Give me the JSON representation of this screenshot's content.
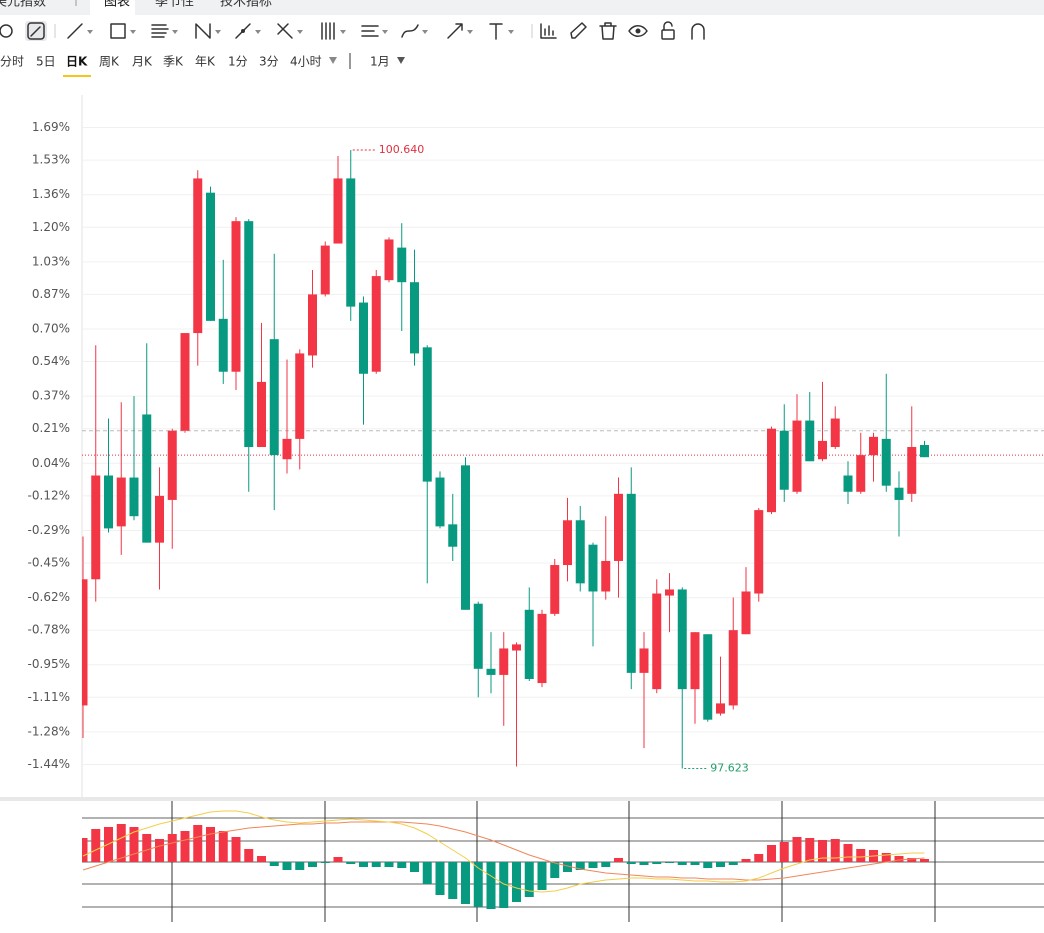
{
  "tabs": {
    "items": [
      "美元指数",
      "图表",
      "季节性",
      "技术指标"
    ],
    "active": 1
  },
  "periods": {
    "items": [
      "分时",
      "5日",
      "日K",
      "周K",
      "月K",
      "季K",
      "年K",
      "1分",
      "3分",
      "4小时"
    ],
    "active": 2,
    "more": "1月"
  },
  "chart_data": {
    "type": "candlestick",
    "up_color": "#f23645",
    "down_color": "#089981",
    "ylim": [
      -1.6,
      1.85
    ],
    "yticks": [
      {
        "value": 1.69,
        "label": "1.69%"
      },
      {
        "value": 1.53,
        "label": "1.53%"
      },
      {
        "value": 1.36,
        "label": "1.36%"
      },
      {
        "value": 1.2,
        "label": "1.20%"
      },
      {
        "value": 1.03,
        "label": "1.03%"
      },
      {
        "value": 0.87,
        "label": "0.87%"
      },
      {
        "value": 0.7,
        "label": "0.70%"
      },
      {
        "value": 0.54,
        "label": "0.54%"
      },
      {
        "value": 0.37,
        "label": "0.37%"
      },
      {
        "value": 0.21,
        "label": "0.21%"
      },
      {
        "value": 0.04,
        "label": "0.04%"
      },
      {
        "value": -0.12,
        "label": "-0.12%"
      },
      {
        "value": -0.29,
        "label": "-0.29%"
      },
      {
        "value": -0.45,
        "label": "-0.45%"
      },
      {
        "value": -0.62,
        "label": "-0.62%"
      },
      {
        "value": -0.78,
        "label": "-0.78%"
      },
      {
        "value": -0.95,
        "label": "-0.95%"
      },
      {
        "value": -1.11,
        "label": "-1.11%"
      },
      {
        "value": -1.28,
        "label": "-1.28%"
      },
      {
        "value": -1.44,
        "label": "-1.44%"
      }
    ],
    "grid": true,
    "max_label": "100.640",
    "min_label": "97.623",
    "price_lines": [
      {
        "value": 0.2,
        "color": "#bbbbbb",
        "dash": "4 3"
      },
      {
        "value": 0.08,
        "color": "#e0303f",
        "dash": "1 2"
      }
    ],
    "ohlc": [
      [
        -1.15,
        -0.32,
        -1.31,
        -0.53
      ],
      [
        -0.53,
        0.62,
        -0.64,
        -0.02
      ],
      [
        -0.02,
        0.26,
        -0.3,
        -0.28
      ],
      [
        -0.27,
        0.34,
        -0.41,
        -0.03
      ],
      [
        -0.03,
        0.37,
        -0.24,
        -0.22
      ],
      [
        0.28,
        0.63,
        -0.35,
        -0.35
      ],
      [
        -0.35,
        0.02,
        -0.58,
        -0.12
      ],
      [
        -0.14,
        0.21,
        -0.38,
        0.2
      ],
      [
        0.2,
        0.68,
        0.19,
        0.68
      ],
      [
        0.68,
        1.48,
        0.52,
        1.44
      ],
      [
        1.37,
        1.4,
        0.74,
        0.74
      ],
      [
        0.75,
        1.04,
        0.43,
        0.49
      ],
      [
        0.49,
        1.25,
        0.4,
        1.23
      ],
      [
        1.23,
        1.24,
        -0.1,
        0.12
      ],
      [
        0.12,
        0.73,
        0.12,
        0.44
      ],
      [
        0.65,
        1.07,
        -0.19,
        0.08
      ],
      [
        0.06,
        0.55,
        -0.01,
        0.16
      ],
      [
        0.16,
        0.6,
        0.01,
        0.58
      ],
      [
        0.57,
        0.99,
        0.51,
        0.87
      ],
      [
        0.87,
        1.13,
        0.86,
        1.11
      ],
      [
        1.12,
        1.55,
        1.12,
        1.44
      ],
      [
        1.44,
        1.58,
        0.74,
        0.81
      ],
      [
        0.83,
        0.86,
        0.23,
        0.48
      ],
      [
        0.49,
        0.99,
        0.48,
        0.96
      ],
      [
        0.94,
        1.15,
        0.93,
        1.14
      ],
      [
        1.1,
        1.22,
        0.69,
        0.93
      ],
      [
        0.93,
        1.09,
        0.52,
        0.58
      ],
      [
        0.61,
        0.62,
        -0.55,
        -0.05
      ],
      [
        -0.03,
        0.0,
        -0.28,
        -0.27
      ],
      [
        -0.26,
        -0.11,
        -0.44,
        -0.37
      ],
      [
        0.03,
        0.07,
        -0.68,
        -0.68
      ],
      [
        -0.65,
        -0.64,
        -1.11,
        -0.97
      ],
      [
        -0.97,
        -0.79,
        -1.09,
        -1.0
      ],
      [
        -1.0,
        -0.79,
        -1.25,
        -0.87
      ],
      [
        -0.88,
        -0.84,
        -1.45,
        -0.85
      ],
      [
        -0.68,
        -0.57,
        -1.03,
        -1.02
      ],
      [
        -1.04,
        -0.68,
        -1.06,
        -0.7
      ],
      [
        -0.7,
        -0.43,
        -0.71,
        -0.46
      ],
      [
        -0.46,
        -0.13,
        -0.54,
        -0.24
      ],
      [
        -0.24,
        -0.17,
        -0.59,
        -0.55
      ],
      [
        -0.36,
        -0.35,
        -0.86,
        -0.59
      ],
      [
        -0.59,
        -0.22,
        -0.63,
        -0.44
      ],
      [
        -0.44,
        -0.03,
        -0.62,
        -0.11
      ],
      [
        -0.11,
        0.02,
        -1.07,
        -0.99
      ],
      [
        -0.99,
        -0.79,
        -1.36,
        -0.87
      ],
      [
        -1.07,
        -0.53,
        -1.09,
        -0.6
      ],
      [
        -0.61,
        -0.5,
        -0.79,
        -0.58
      ],
      [
        -0.58,
        -0.57,
        -1.46,
        -1.07
      ],
      [
        -1.07,
        -0.79,
        -1.24,
        -0.79
      ],
      [
        -0.8,
        -0.8,
        -1.23,
        -1.22
      ],
      [
        -1.19,
        -0.91,
        -1.2,
        -1.14
      ],
      [
        -1.15,
        -0.62,
        -1.17,
        -0.78
      ],
      [
        -0.8,
        -0.47,
        -0.8,
        -0.59
      ],
      [
        -0.6,
        -0.18,
        -0.64,
        -0.19
      ],
      [
        -0.2,
        0.22,
        -0.21,
        0.21
      ],
      [
        0.2,
        0.33,
        -0.15,
        -0.09
      ],
      [
        -0.1,
        0.38,
        -0.11,
        0.25
      ],
      [
        0.25,
        0.39,
        0.05,
        0.05
      ],
      [
        0.06,
        0.44,
        0.05,
        0.15
      ],
      [
        0.12,
        0.32,
        0.11,
        0.26
      ],
      [
        -0.02,
        0.05,
        -0.16,
        -0.1
      ],
      [
        -0.1,
        0.19,
        -0.11,
        0.08
      ],
      [
        0.08,
        0.19,
        -0.05,
        0.17
      ],
      [
        0.16,
        0.48,
        -0.1,
        -0.07
      ],
      [
        -0.08,
        0.0,
        -0.32,
        -0.14
      ],
      [
        -0.11,
        0.32,
        -0.15,
        0.12
      ],
      [
        0.13,
        0.15,
        0.07,
        0.07
      ]
    ],
    "macd": {
      "ylim": [
        -59,
        61
      ],
      "gridlines": [
        44,
        21,
        0,
        -22,
        -45
      ],
      "dif_color": "#f2cf4a",
      "dea_color": "#f0875a",
      "histogram": [
        24,
        33,
        35,
        38,
        35,
        28,
        23,
        28,
        31,
        37,
        35,
        31,
        25,
        13,
        6,
        -4,
        -8,
        -8,
        -5,
        -1,
        5,
        -2,
        -5,
        -5,
        -5,
        -6,
        -10,
        -22,
        -33,
        -37,
        -42,
        -45,
        -47,
        -46,
        -40,
        -35,
        -28,
        -16,
        -10,
        -8,
        -6,
        -5,
        4,
        -2,
        -3,
        -2,
        -1,
        -3,
        -3,
        -6,
        -5,
        -3,
        3,
        8,
        17,
        20,
        25,
        24,
        22,
        23,
        18,
        13,
        12,
        9,
        6,
        4,
        3
      ],
      "dif": [
        6,
        12,
        18,
        24,
        30,
        34,
        38,
        41,
        44,
        47,
        50,
        51,
        51,
        49,
        45,
        42,
        40,
        39,
        40,
        41,
        42,
        43,
        42,
        41,
        40,
        38,
        34,
        28,
        20,
        12,
        4,
        -6,
        -14,
        -22,
        -26,
        -29,
        -30,
        -29,
        -26,
        -22,
        -20,
        -18,
        -17,
        -16,
        -16,
        -17,
        -17,
        -18,
        -19,
        -19,
        -20,
        -20,
        -19,
        -16,
        -11,
        -6,
        -2,
        2,
        4,
        4,
        5,
        5,
        6,
        7,
        8,
        9,
        9
      ],
      "dea": [
        -8,
        -4,
        0,
        4,
        8,
        12,
        16,
        19,
        22,
        25,
        28,
        30,
        32,
        34,
        35,
        36,
        37,
        38,
        38,
        39,
        39,
        40,
        40,
        40,
        40,
        40,
        39,
        38,
        36,
        33,
        30,
        26,
        22,
        17,
        12,
        7,
        3,
        -1,
        -4,
        -7,
        -9,
        -11,
        -12,
        -13,
        -14,
        -15,
        -15,
        -16,
        -16,
        -17,
        -17,
        -17,
        -18,
        -18,
        -17,
        -16,
        -14,
        -12,
        -10,
        -8,
        -6,
        -4,
        -2,
        0,
        2,
        3,
        4
      ]
    }
  }
}
